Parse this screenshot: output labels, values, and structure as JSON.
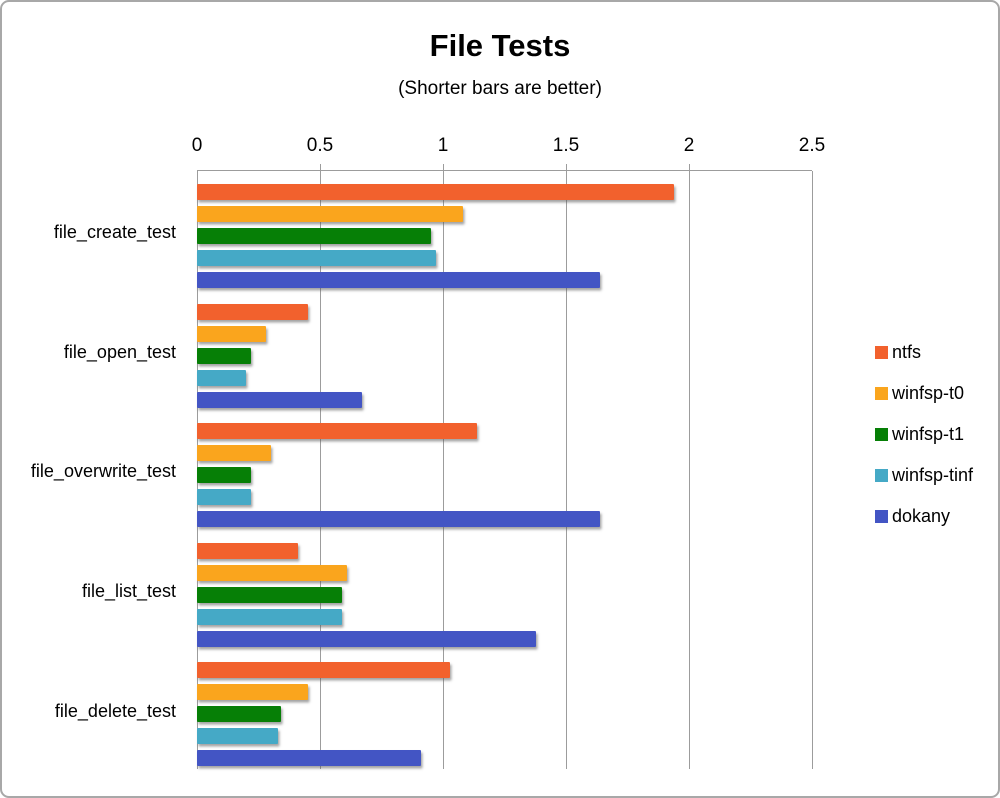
{
  "chart_data": {
    "type": "bar",
    "orientation": "horizontal",
    "title": "File Tests",
    "subtitle": "(Shorter bars are better)",
    "categories": [
      "file_create_test",
      "file_open_test",
      "file_overwrite_test",
      "file_list_test",
      "file_delete_test"
    ],
    "series": [
      {
        "name": "ntfs",
        "color": "#F2612D",
        "values": [
          1.94,
          0.45,
          1.14,
          0.41,
          1.03
        ]
      },
      {
        "name": "winfsp-t0",
        "color": "#FAA51D",
        "values": [
          1.08,
          0.28,
          0.3,
          0.61,
          0.45
        ]
      },
      {
        "name": "winfsp-t1",
        "color": "#067F06",
        "values": [
          0.95,
          0.22,
          0.22,
          0.59,
          0.34
        ]
      },
      {
        "name": "winfsp-tinf",
        "color": "#45A9C6",
        "values": [
          0.97,
          0.2,
          0.22,
          0.59,
          0.33
        ]
      },
      {
        "name": "dokany",
        "color": "#4355C4",
        "values": [
          1.64,
          0.67,
          1.64,
          1.38,
          0.91
        ]
      }
    ],
    "x_axis": {
      "min": 0,
      "max": 2.5,
      "tick_interval": 0.5,
      "tick_labels": [
        "0",
        "0.5",
        "1",
        "1.5",
        "2",
        "2.5"
      ],
      "position": "top"
    },
    "legend": {
      "position": "right",
      "entries": [
        "ntfs",
        "winfsp-t0",
        "winfsp-t1",
        "winfsp-tinf",
        "dokany"
      ]
    },
    "grid": true,
    "gridline_color": "#9c9c9c",
    "plot_border_color": "#9c9c9c"
  }
}
